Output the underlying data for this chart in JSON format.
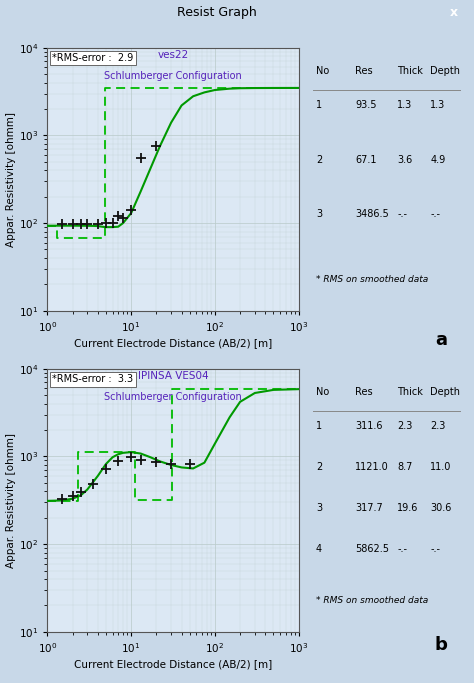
{
  "fig_bg": "#c8d8e8",
  "chart_bg": "#dce8f4",
  "title_bar_text": "Resist Graph",
  "title_bar_bg": "#a8c0d8",
  "close_btn_color": "#cc2222",
  "chart_a": {
    "rms_error": "2.9",
    "ves_title": "ves22",
    "config": "Schlumberger Configuration",
    "ylabel": "Appar. Resistivity [ohmm]",
    "xlabel": "Current Electrode Distance (AB/2) [m]",
    "xlim": [
      1,
      1000
    ],
    "ylim": [
      10,
      10000
    ],
    "smooth_x": [
      1.0,
      1.2,
      1.5,
      2.0,
      2.5,
      3.0,
      3.5,
      4.0,
      4.5,
      5.0,
      6.0,
      7.0,
      8.0,
      10.0,
      13.0,
      17.0,
      22.0,
      30.0,
      40.0,
      55.0,
      75.0,
      100.0,
      150.0,
      200.0,
      300.0,
      500.0,
      1000.0
    ],
    "smooth_y": [
      93.5,
      93.5,
      93.5,
      93.5,
      93.4,
      93.2,
      93.0,
      92.5,
      91.0,
      90.0,
      90.0,
      91.0,
      100.0,
      130.0,
      230.0,
      420.0,
      750.0,
      1400.0,
      2200.0,
      2800.0,
      3100.0,
      3300.0,
      3420.0,
      3460.0,
      3475.0,
      3482.0,
      3486.0
    ],
    "data_x": [
      1.5,
      2.0,
      2.5,
      3.0,
      4.0,
      5.0,
      6.0,
      7.0,
      8.0,
      10.0,
      13.0,
      20.0
    ],
    "data_y": [
      97,
      97,
      97,
      97,
      97,
      100,
      100,
      120,
      115,
      140,
      550,
      750
    ],
    "block_x": [
      1.0,
      1.3,
      1.3,
      4.9,
      4.9,
      1000.0
    ],
    "block_y": [
      93.5,
      93.5,
      67.1,
      67.1,
      3486.5,
      3486.5
    ],
    "table": {
      "headers": [
        "No",
        "Res",
        "Thick",
        "Depth"
      ],
      "rows": [
        [
          "1",
          "93.5",
          "1.3",
          "1.3"
        ],
        [
          "2",
          "67.1",
          "3.6",
          "4.9"
        ],
        [
          "3",
          "3486.5",
          "-.-",
          "-.-"
        ]
      ],
      "note": "* RMS on smoothed data"
    }
  },
  "chart_b": {
    "rms_error": "3.3",
    "ves_title": "IPINSA VES04",
    "config": "Schlumberger Configuration",
    "ylabel": "Appar. Resistivity [ohmm]",
    "xlabel": "Current Electrode Distance (AB/2) [m]",
    "xlim": [
      1,
      1000
    ],
    "ylim": [
      10,
      10000
    ],
    "smooth_x": [
      1.0,
      1.5,
      2.0,
      2.5,
      3.0,
      4.0,
      5.0,
      6.0,
      7.0,
      8.0,
      10.0,
      13.0,
      17.0,
      22.0,
      30.0,
      40.0,
      55.0,
      75.0,
      100.0,
      150.0,
      200.0,
      300.0,
      500.0,
      1000.0
    ],
    "smooth_y": [
      311.6,
      315.0,
      330.0,
      360.0,
      420.0,
      600.0,
      820.0,
      980.0,
      1060.0,
      1100.0,
      1121.0,
      1080.0,
      980.0,
      880.0,
      800.0,
      750.0,
      730.0,
      850.0,
      1400.0,
      2800.0,
      4200.0,
      5300.0,
      5750.0,
      5862.0
    ],
    "data_x": [
      1.5,
      2.0,
      2.5,
      3.5,
      5.0,
      7.0,
      10.0,
      13.0,
      20.0,
      30.0,
      50.0
    ],
    "data_y": [
      330,
      355,
      390,
      490,
      720,
      880,
      980,
      920,
      870,
      820,
      820
    ],
    "block_x": [
      1.0,
      2.3,
      2.3,
      11.0,
      11.0,
      30.6,
      30.6,
      1000.0
    ],
    "block_y": [
      311.6,
      311.6,
      1121.0,
      1121.0,
      317.7,
      317.7,
      5862.5,
      5862.5
    ],
    "table": {
      "headers": [
        "No",
        "Res",
        "Thick",
        "Depth"
      ],
      "rows": [
        [
          "1",
          "311.6",
          "2.3",
          "2.3"
        ],
        [
          "2",
          "1121.0",
          "8.7",
          "11.0"
        ],
        [
          "3",
          "317.7",
          "19.6",
          "30.6"
        ],
        [
          "4",
          "5862.5",
          "-.-",
          "-.-"
        ]
      ],
      "note": "* RMS on smoothed data"
    }
  },
  "line_color": "#009900",
  "dash_color": "#00bb00",
  "marker_color": "#111111",
  "grid_color": "#bbcccc",
  "text_purple": "#5522bb",
  "label_color": "#000000"
}
